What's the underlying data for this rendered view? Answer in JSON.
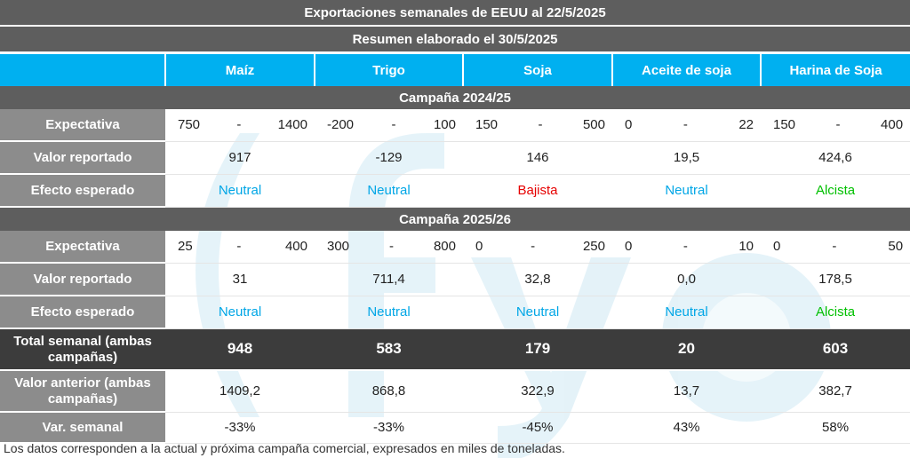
{
  "title": "Exportaciones semanales de EEUU al 22/5/2025",
  "subtitle": "Resumen elaborado el 30/5/2025",
  "columns": [
    "Maíz",
    "Trigo",
    "Soja",
    "Aceite de soja",
    "Harina de Soja"
  ],
  "labels": {
    "expectativa": "Expectativa",
    "valor_reportado": "Valor reportado",
    "efecto_esperado": "Efecto esperado",
    "total_semanal": "Total semanal (ambas campañas)",
    "valor_anterior": "Valor anterior (ambas campañas)",
    "var_semanal": "Var. semanal",
    "dash": "-"
  },
  "campaigns": [
    {
      "name": "Campaña  2024/25",
      "expectativa": [
        [
          "750",
          "1400"
        ],
        [
          "-200",
          "100"
        ],
        [
          "150",
          "500"
        ],
        [
          "0",
          "22"
        ],
        [
          "150",
          "400"
        ]
      ],
      "valor_reportado": [
        "917",
        "-129",
        "146",
        "19,5",
        "424,6"
      ],
      "efecto_esperado": [
        "Neutral",
        "Neutral",
        "Bajista",
        "Neutral",
        "Alcista"
      ]
    },
    {
      "name": "Campaña  2025/26",
      "expectativa": [
        [
          "25",
          "400"
        ],
        [
          "300",
          "800"
        ],
        [
          "0",
          "250"
        ],
        [
          "0",
          "10"
        ],
        [
          "0",
          "50"
        ]
      ],
      "valor_reportado": [
        "31",
        "711,4",
        "32,8",
        "0,0",
        "178,5"
      ],
      "efecto_esperado": [
        "Neutral",
        "Neutral",
        "Neutral",
        "Neutral",
        "Alcista"
      ]
    }
  ],
  "total_semanal": [
    "948",
    "583",
    "179",
    "20",
    "603"
  ],
  "valor_anterior": [
    "1409,2",
    "868,8",
    "322,9",
    "13,7",
    "382,7"
  ],
  "var_semanal": [
    "-33%",
    "-33%",
    "-45%",
    "43%",
    "58%"
  ],
  "effect_colors": {
    "Neutral": "#00a6e6",
    "Bajista": "#e60000",
    "Alcista": "#00c000"
  },
  "header_color": "#00b0f0",
  "watermark": "(fyo",
  "footnote": "Los datos corresponden a la actual y próxima campaña comercial, expresados en miles de toneladas."
}
